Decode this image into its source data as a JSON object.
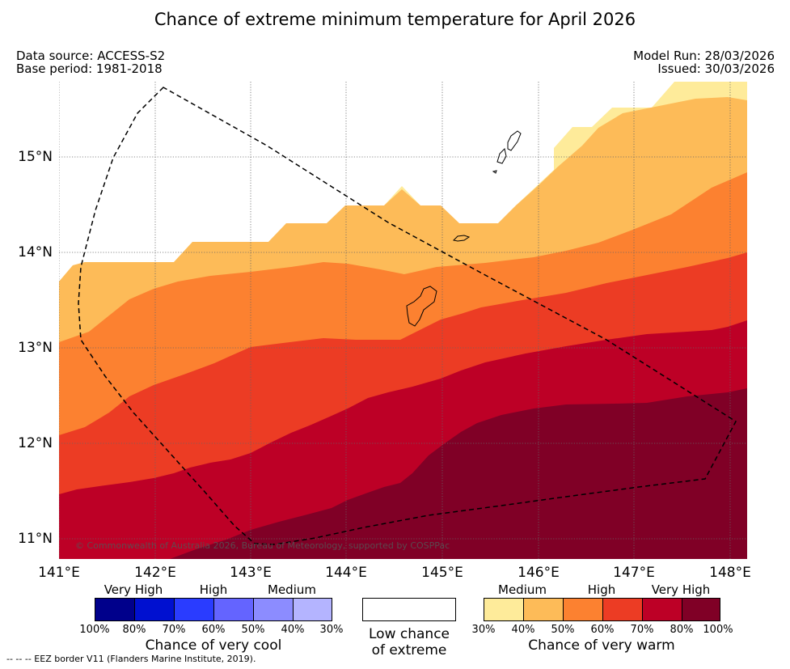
{
  "title": "Chance of extreme minimum temperature for April 2026",
  "meta": {
    "data_source": "Data source: ACCESS-S2",
    "base_period": "Base period: 1981-2018",
    "model_run": "Model Run: 28/03/2026",
    "issued": "Issued: 30/03/2026"
  },
  "axes": {
    "x_ticks": [
      "141°E",
      "142°E",
      "143°E",
      "144°E",
      "145°E",
      "146°E",
      "147°E",
      "148°E"
    ],
    "y_ticks": [
      "15°N",
      "14°N",
      "13°N",
      "12°N",
      "11°N"
    ]
  },
  "copyright": "© Commonwealth of Australia 2026, Bureau of Meteorology, supported by COSPPac",
  "legend": {
    "cool": {
      "categories": [
        "Very High",
        "High",
        "Medium"
      ],
      "percent_ticks": [
        "100%",
        "80%",
        "70%",
        "60%",
        "50%",
        "40%",
        "30%"
      ],
      "title": "Chance of very cool",
      "colors": [
        "#00008b",
        "#0010d0",
        "#2a3cff",
        "#6464ff",
        "#8c8cff",
        "#b4b4ff"
      ]
    },
    "low": {
      "line1": "Low chance",
      "line2": "of extreme"
    },
    "warm": {
      "categories": [
        "Medium",
        "High",
        "Very High"
      ],
      "percent_ticks": [
        "30%",
        "40%",
        "50%",
        "60%",
        "70%",
        "80%",
        "100%"
      ],
      "title": "Chance of very warm",
      "colors": [
        "#feeb9a",
        "#fdbb58",
        "#fc8130",
        "#ec3c24",
        "#bd0026",
        "#800026"
      ]
    }
  },
  "eez_note": "--  --  -- EEZ border V11 (Flanders Marine Institute, 2019)."
}
